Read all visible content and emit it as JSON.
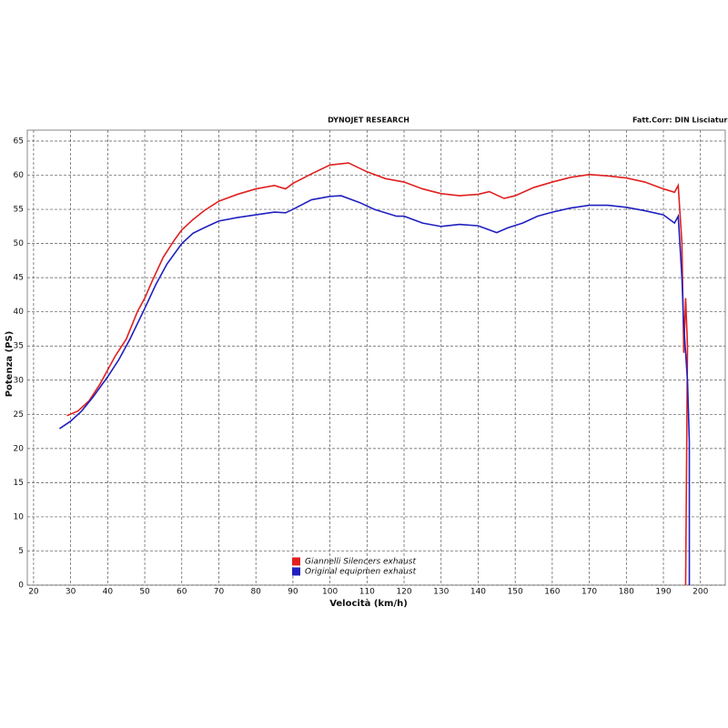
{
  "chart_data": {
    "type": "line",
    "title": "DYNOJET RESEARCH",
    "subtitle": "Fatt.Corr: DIN  Lisciatura:",
    "x_label": "Velocità (km/h)",
    "y_label": "Potenza (PS)",
    "xlim": [
      18.3,
      206.7
    ],
    "ylim": [
      0,
      66.6
    ],
    "xticks": [
      20,
      30,
      40,
      50,
      60,
      70,
      80,
      90,
      100,
      110,
      120,
      130,
      140,
      150,
      160,
      170,
      180,
      190,
      200
    ],
    "yticks": [
      0,
      5,
      10,
      15,
      20,
      25,
      30,
      35,
      40,
      45,
      50,
      55,
      60,
      65
    ],
    "grid": true,
    "legend": "bottom-center",
    "series": [
      {
        "name": "Giannelli Silencers exhaust",
        "color": "#e02020",
        "x": [
          29,
          32,
          35,
          38,
          40,
          42,
          45,
          48,
          50,
          52,
          55,
          58,
          60,
          63,
          66,
          70,
          75,
          80,
          85,
          88,
          90,
          95,
          100,
          105,
          110,
          115,
          120,
          125,
          130,
          135,
          140,
          143,
          147,
          150,
          155,
          160,
          165,
          170,
          175,
          180,
          185,
          190,
          193,
          194,
          195,
          195.5,
          196,
          196.5,
          196
        ],
        "values": [
          24.8,
          25.5,
          27,
          29.5,
          31.5,
          33.5,
          36,
          40,
          42,
          44.5,
          48,
          50.5,
          52,
          53.5,
          54.8,
          56.2,
          57.2,
          58,
          58.5,
          58,
          58.8,
          60.2,
          61.5,
          61.8,
          60.5,
          59.5,
          59,
          58,
          57.3,
          57,
          57.2,
          57.6,
          56.6,
          57,
          58.2,
          59,
          59.7,
          60.1,
          59.9,
          59.6,
          59,
          58,
          57.5,
          58.5,
          50,
          34,
          42,
          35,
          0
        ]
      },
      {
        "name": "Original equipmen exhaust",
        "color": "#2020c0",
        "x": [
          27,
          30,
          33,
          36,
          40,
          43,
          46,
          50,
          53,
          56,
          60,
          63,
          66,
          70,
          75,
          80,
          85,
          88,
          90,
          95,
          100,
          103,
          108,
          112,
          115,
          118,
          120,
          125,
          130,
          135,
          140,
          143,
          145,
          148,
          152,
          156,
          160,
          165,
          170,
          175,
          180,
          185,
          190,
          193,
          194,
          195,
          195.5,
          196,
          196.5,
          197,
          197
        ],
        "values": [
          22.9,
          24,
          25.5,
          27.5,
          30.5,
          33,
          36,
          40.5,
          44,
          47,
          50,
          51.5,
          52.3,
          53.3,
          53.8,
          54.2,
          54.6,
          54.5,
          55,
          56.4,
          56.9,
          57,
          56,
          55,
          54.5,
          54,
          54,
          53,
          52.5,
          52.8,
          52.6,
          52,
          51.6,
          52.3,
          53,
          54,
          54.6,
          55.2,
          55.6,
          55.6,
          55.3,
          54.8,
          54.2,
          53,
          54,
          45,
          38,
          34,
          30,
          21,
          0
        ]
      }
    ]
  }
}
